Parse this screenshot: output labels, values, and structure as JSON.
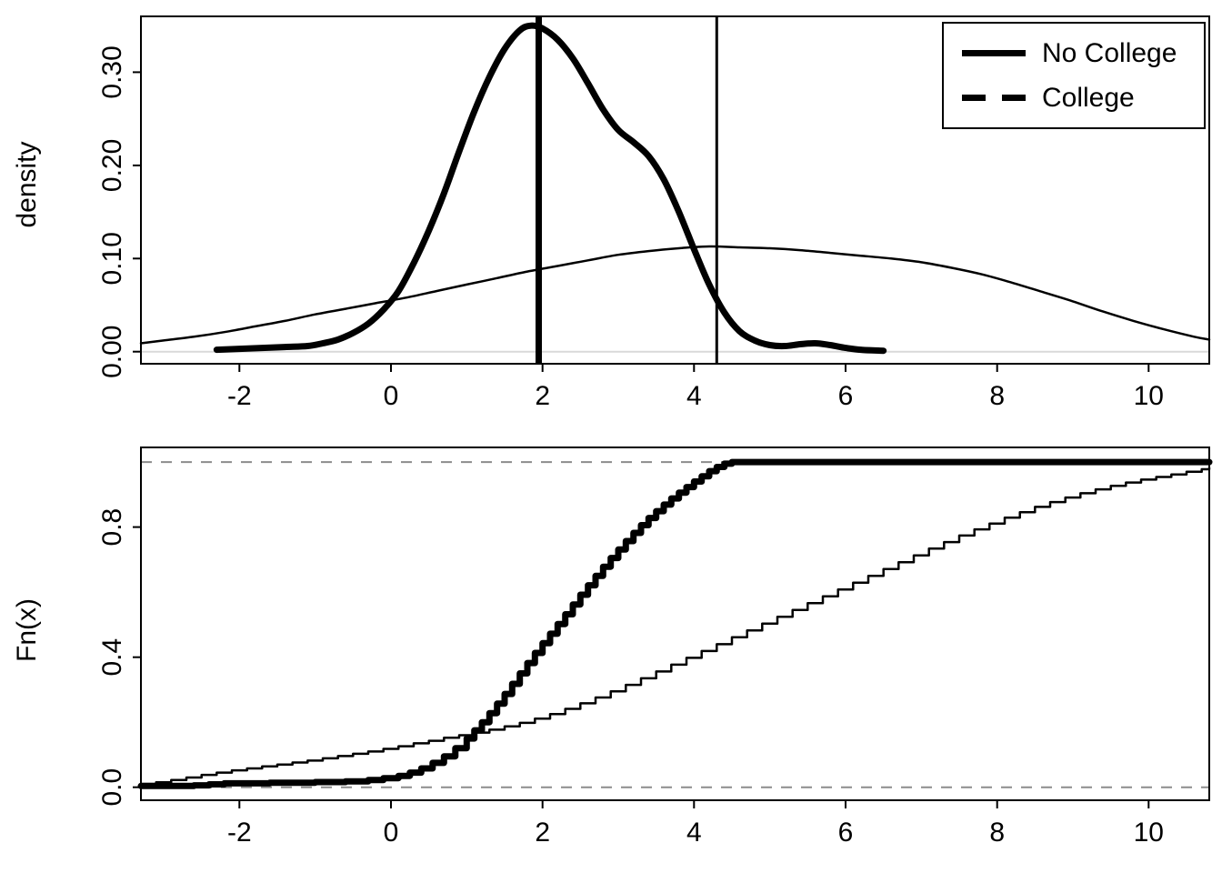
{
  "figure": {
    "background": "#ffffff",
    "foreground": "#000000",
    "reference_dash_color": "#8c8c8c",
    "zero_line_color": "#d9d9d9"
  },
  "chart_data": [
    {
      "type": "line",
      "panel": "density",
      "title": "",
      "xlabel": "",
      "ylabel": "density",
      "xlim": [
        -3.3,
        10.8
      ],
      "ylim": [
        -0.013,
        0.36
      ],
      "xticks": [
        -2,
        0,
        2,
        4,
        6,
        8,
        10
      ],
      "yticks": [
        0,
        0.1,
        0.2,
        0.3
      ],
      "ytick_labels": [
        "0.00",
        "0.10",
        "0.20",
        "0.30"
      ],
      "grid": false,
      "legend": {
        "position": "top-right",
        "entries": [
          {
            "label": "No College",
            "line": "solid-thick"
          },
          {
            "label": "College",
            "line": "dashed-thick"
          }
        ]
      },
      "hlines": [
        {
          "y": 0,
          "color": "#d9d9d9",
          "width": 2,
          "dash": "",
          "name": "zero-reference-line"
        }
      ],
      "vlines": [
        {
          "x": 1.95,
          "lwd": 7,
          "name": "vline-no-college-mean"
        },
        {
          "x": 4.3,
          "lwd": 3,
          "name": "vline-college-mean"
        }
      ],
      "series": [
        {
          "name": "No College",
          "slug": "no-college-density",
          "lwd": 7,
          "step": false,
          "points": [
            [
              -2.3,
              0.002
            ],
            [
              -2.0,
              0.003
            ],
            [
              -1.7,
              0.004
            ],
            [
              -1.4,
              0.005
            ],
            [
              -1.1,
              0.006
            ],
            [
              -0.9,
              0.009
            ],
            [
              -0.7,
              0.013
            ],
            [
              -0.5,
              0.02
            ],
            [
              -0.3,
              0.03
            ],
            [
              -0.1,
              0.045
            ],
            [
              0.1,
              0.065
            ],
            [
              0.3,
              0.095
            ],
            [
              0.5,
              0.13
            ],
            [
              0.7,
              0.17
            ],
            [
              0.9,
              0.215
            ],
            [
              1.1,
              0.258
            ],
            [
              1.3,
              0.295
            ],
            [
              1.5,
              0.325
            ],
            [
              1.7,
              0.345
            ],
            [
              1.85,
              0.35
            ],
            [
              2.0,
              0.347
            ],
            [
              2.2,
              0.335
            ],
            [
              2.4,
              0.315
            ],
            [
              2.6,
              0.288
            ],
            [
              2.8,
              0.26
            ],
            [
              3.0,
              0.238
            ],
            [
              3.2,
              0.225
            ],
            [
              3.4,
              0.21
            ],
            [
              3.6,
              0.185
            ],
            [
              3.8,
              0.15
            ],
            [
              4.0,
              0.11
            ],
            [
              4.2,
              0.072
            ],
            [
              4.4,
              0.042
            ],
            [
              4.6,
              0.022
            ],
            [
              4.8,
              0.012
            ],
            [
              5.0,
              0.007
            ],
            [
              5.2,
              0.006
            ],
            [
              5.4,
              0.008
            ],
            [
              5.6,
              0.009
            ],
            [
              5.8,
              0.007
            ],
            [
              6.0,
              0.004
            ],
            [
              6.2,
              0.002
            ],
            [
              6.5,
              0.001
            ]
          ]
        },
        {
          "name": "College",
          "slug": "college-density",
          "lwd": 2.5,
          "step": false,
          "points": [
            [
              -3.3,
              0.009
            ],
            [
              -3.0,
              0.012
            ],
            [
              -2.6,
              0.016
            ],
            [
              -2.2,
              0.021
            ],
            [
              -1.8,
              0.027
            ],
            [
              -1.4,
              0.033
            ],
            [
              -1.0,
              0.04
            ],
            [
              -0.6,
              0.046
            ],
            [
              -0.2,
              0.052
            ],
            [
              0.2,
              0.058
            ],
            [
              0.6,
              0.065
            ],
            [
              1.0,
              0.072
            ],
            [
              1.4,
              0.079
            ],
            [
              1.8,
              0.086
            ],
            [
              2.2,
              0.092
            ],
            [
              2.6,
              0.098
            ],
            [
              3.0,
              0.104
            ],
            [
              3.4,
              0.108
            ],
            [
              3.8,
              0.111
            ],
            [
              4.2,
              0.113
            ],
            [
              4.6,
              0.112
            ],
            [
              5.0,
              0.111
            ],
            [
              5.4,
              0.109
            ],
            [
              5.8,
              0.106
            ],
            [
              6.2,
              0.103
            ],
            [
              6.6,
              0.1
            ],
            [
              7.0,
              0.096
            ],
            [
              7.4,
              0.09
            ],
            [
              7.8,
              0.083
            ],
            [
              8.2,
              0.074
            ],
            [
              8.6,
              0.064
            ],
            [
              9.0,
              0.054
            ],
            [
              9.4,
              0.043
            ],
            [
              9.8,
              0.033
            ],
            [
              10.2,
              0.024
            ],
            [
              10.6,
              0.016
            ],
            [
              10.8,
              0.013
            ]
          ]
        }
      ]
    },
    {
      "type": "line",
      "panel": "ecdf",
      "title": "",
      "xlabel": "",
      "ylabel": "Fn(x)",
      "xlim": [
        -3.3,
        10.8
      ],
      "ylim": [
        -0.04,
        1.045
      ],
      "xticks": [
        -2,
        0,
        2,
        4,
        6,
        8,
        10
      ],
      "yticks": [
        0,
        0.4,
        0.8
      ],
      "ytick_labels": [
        "0.0",
        "0.4",
        "0.8"
      ],
      "grid": false,
      "hlines": [
        {
          "y": 0,
          "color": "#8c8c8c",
          "width": 2,
          "dash": "12 10",
          "name": "ref-line-zero"
        },
        {
          "y": 1,
          "color": "#8c8c8c",
          "width": 2,
          "dash": "12 10",
          "name": "ref-line-one"
        }
      ],
      "vlines": [],
      "series": [
        {
          "name": "No College",
          "slug": "no-college-ecdf",
          "lwd": 7,
          "step": true,
          "points": [
            [
              -3.3,
              0.004
            ],
            [
              -2.6,
              0.006
            ],
            [
              -2.4,
              0.009
            ],
            [
              -2.2,
              0.012
            ],
            [
              -1.6,
              0.014
            ],
            [
              -1.0,
              0.016
            ],
            [
              -0.6,
              0.018
            ],
            [
              -0.3,
              0.022
            ],
            [
              -0.1,
              0.028
            ],
            [
              0.1,
              0.035
            ],
            [
              0.25,
              0.045
            ],
            [
              0.4,
              0.058
            ],
            [
              0.55,
              0.075
            ],
            [
              0.7,
              0.095
            ],
            [
              0.85,
              0.12
            ],
            [
              1.0,
              0.15
            ],
            [
              1.1,
              0.175
            ],
            [
              1.2,
              0.2
            ],
            [
              1.3,
              0.228
            ],
            [
              1.4,
              0.257
            ],
            [
              1.5,
              0.287
            ],
            [
              1.6,
              0.318
            ],
            [
              1.7,
              0.35
            ],
            [
              1.8,
              0.382
            ],
            [
              1.9,
              0.413
            ],
            [
              2.0,
              0.443
            ],
            [
              2.1,
              0.472
            ],
            [
              2.2,
              0.502
            ],
            [
              2.3,
              0.532
            ],
            [
              2.4,
              0.562
            ],
            [
              2.5,
              0.592
            ],
            [
              2.6,
              0.621
            ],
            [
              2.7,
              0.65
            ],
            [
              2.8,
              0.678
            ],
            [
              2.9,
              0.705
            ],
            [
              3.0,
              0.731
            ],
            [
              3.1,
              0.757
            ],
            [
              3.2,
              0.782
            ],
            [
              3.3,
              0.806
            ],
            [
              3.4,
              0.828
            ],
            [
              3.5,
              0.849
            ],
            [
              3.6,
              0.869
            ],
            [
              3.7,
              0.888
            ],
            [
              3.8,
              0.906
            ],
            [
              3.9,
              0.923
            ],
            [
              4.0,
              0.94
            ],
            [
              4.1,
              0.956
            ],
            [
              4.2,
              0.972
            ],
            [
              4.3,
              0.985
            ],
            [
              4.4,
              0.995
            ],
            [
              4.5,
              1.0
            ],
            [
              10.8,
              1.0
            ]
          ]
        },
        {
          "name": "College",
          "slug": "college-ecdf",
          "lwd": 2.5,
          "step": true,
          "points": [
            [
              -3.3,
              0.01
            ],
            [
              -3.1,
              0.015
            ],
            [
              -2.9,
              0.022
            ],
            [
              -2.7,
              0.03
            ],
            [
              -2.5,
              0.038
            ],
            [
              -2.3,
              0.045
            ],
            [
              -2.1,
              0.052
            ],
            [
              -1.9,
              0.058
            ],
            [
              -1.7,
              0.064
            ],
            [
              -1.5,
              0.07
            ],
            [
              -1.3,
              0.076
            ],
            [
              -1.1,
              0.082
            ],
            [
              -0.9,
              0.089
            ],
            [
              -0.7,
              0.096
            ],
            [
              -0.5,
              0.103
            ],
            [
              -0.3,
              0.11
            ],
            [
              -0.1,
              0.118
            ],
            [
              0.1,
              0.126
            ],
            [
              0.3,
              0.135
            ],
            [
              0.5,
              0.143
            ],
            [
              0.7,
              0.152
            ],
            [
              0.9,
              0.16
            ],
            [
              1.1,
              0.168
            ],
            [
              1.3,
              0.177
            ],
            [
              1.5,
              0.187
            ],
            [
              1.7,
              0.198
            ],
            [
              1.9,
              0.211
            ],
            [
              2.1,
              0.225
            ],
            [
              2.3,
              0.241
            ],
            [
              2.5,
              0.258
            ],
            [
              2.7,
              0.276
            ],
            [
              2.9,
              0.295
            ],
            [
              3.1,
              0.315
            ],
            [
              3.3,
              0.335
            ],
            [
              3.5,
              0.356
            ],
            [
              3.7,
              0.377
            ],
            [
              3.9,
              0.398
            ],
            [
              4.1,
              0.419
            ],
            [
              4.3,
              0.44
            ],
            [
              4.5,
              0.461
            ],
            [
              4.7,
              0.482
            ],
            [
              4.9,
              0.503
            ],
            [
              5.1,
              0.524
            ],
            [
              5.3,
              0.545
            ],
            [
              5.5,
              0.566
            ],
            [
              5.7,
              0.587
            ],
            [
              5.9,
              0.608
            ],
            [
              6.1,
              0.629
            ],
            [
              6.3,
              0.65
            ],
            [
              6.5,
              0.671
            ],
            [
              6.7,
              0.692
            ],
            [
              6.9,
              0.713
            ],
            [
              7.1,
              0.734
            ],
            [
              7.3,
              0.754
            ],
            [
              7.5,
              0.774
            ],
            [
              7.7,
              0.793
            ],
            [
              7.9,
              0.811
            ],
            [
              8.1,
              0.829
            ],
            [
              8.3,
              0.846
            ],
            [
              8.5,
              0.862
            ],
            [
              8.7,
              0.877
            ],
            [
              8.9,
              0.891
            ],
            [
              9.1,
              0.904
            ],
            [
              9.3,
              0.916
            ],
            [
              9.5,
              0.927
            ],
            [
              9.7,
              0.937
            ],
            [
              9.9,
              0.946
            ],
            [
              10.1,
              0.954
            ],
            [
              10.3,
              0.962
            ],
            [
              10.5,
              0.97
            ],
            [
              10.7,
              0.978
            ],
            [
              10.8,
              0.982
            ]
          ]
        }
      ]
    }
  ]
}
